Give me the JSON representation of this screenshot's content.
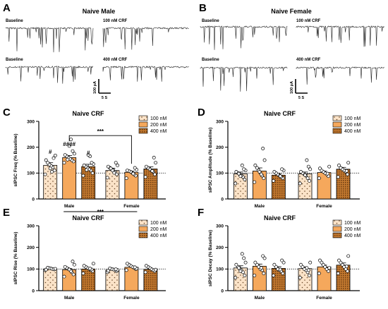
{
  "panels": {
    "A": {
      "label": "A",
      "title": "Naive Male",
      "traces": [
        "Baseline",
        "100 nM CRF",
        "Baseline",
        "400 nM CRF"
      ]
    },
    "B": {
      "label": "B",
      "title": "Naive Female",
      "traces": [
        "Baseline",
        "100 nM CRF",
        "Baseline",
        "400 nM CRF"
      ]
    }
  },
  "scalebar": {
    "amp": "100 pA",
    "time": "5 S"
  },
  "colors": {
    "c100": "#fbe3c8",
    "c200": "#f5a85c",
    "c400": "#9a5a1c",
    "dot": "#ffffff",
    "edge": "#000000"
  },
  "chart_data": [
    {
      "label": "C",
      "type": "bar",
      "title": "Naive CRF",
      "ylabel": "sIPSC Freq (% Baseline)",
      "ylim": [
        0,
        300
      ],
      "yticks": [
        0,
        100,
        200,
        300
      ],
      "categories": [
        "Male",
        "Female"
      ],
      "baseline": 100,
      "series": [
        {
          "name": "100 nM",
          "values": [
            130,
            110
          ],
          "errors": [
            10,
            9
          ],
          "patternKey": "p100",
          "points": [
            [
              95,
              110,
              122,
              128,
              133,
              140,
              150,
              168,
              158,
              105,
              118
            ],
            [
              82,
              95,
              104,
              112,
              115,
              120,
              125,
              130,
              140,
              101,
              110,
              118
            ]
          ],
          "markers": [
            {
              "text": "#",
              "groupIndex": 0,
              "y": 175
            }
          ]
        },
        {
          "name": "200 nM",
          "values": [
            160,
            103
          ],
          "errors": [
            8,
            5
          ],
          "patternKey": "p200",
          "points": [
            [
              140,
              145,
              150,
              155,
              160,
              165,
              170,
              175,
              185,
              230,
              205,
              152
            ],
            [
              80,
              90,
              95,
              100,
              105,
              108,
              110,
              113,
              120,
              98
            ]
          ],
          "markers": [
            {
              "text": "####",
              "groupIndex": 0,
              "y": 205
            }
          ]
        },
        {
          "name": "400 nM",
          "values": [
            125,
            116
          ],
          "errors": [
            9,
            8
          ],
          "patternKey": "p400",
          "points": [
            [
              90,
              100,
              110,
              115,
              120,
              125,
              130,
              135,
              140,
              165,
              170,
              112
            ],
            [
              85,
              95,
              105,
              110,
              115,
              120,
              125,
              140,
              160,
              108
            ]
          ],
          "markers": [
            {
              "text": "#",
              "groupIndex": 0,
              "y": 170
            }
          ]
        }
      ],
      "annotations": [
        {
          "text": "***",
          "type": "upper",
          "y": 245
        },
        {
          "text": "***",
          "type": "lower"
        }
      ],
      "legend": "top-right"
    },
    {
      "label": "D",
      "type": "bar",
      "title": "Naive CRF",
      "ylabel": "sIPSC Amplitude (% Baseline)",
      "ylim": [
        0,
        300
      ],
      "yticks": [
        0,
        100,
        200,
        300
      ],
      "categories": [
        "Male",
        "Female"
      ],
      "baseline": 100,
      "series": [
        {
          "name": "100 nM",
          "values": [
            97,
            97
          ],
          "errors": [
            7,
            7
          ],
          "patternKey": "p100",
          "points": [
            [
              60,
              75,
              85,
              90,
              95,
              100,
              105,
              110,
              115,
              130,
              88,
              98
            ],
            [
              60,
              70,
              80,
              90,
              95,
              100,
              105,
              115,
              125,
              150,
              92
            ]
          ]
        },
        {
          "name": "200 nM",
          "values": [
            108,
            102
          ],
          "errors": [
            12,
            6
          ],
          "patternKey": "p200",
          "points": [
            [
              65,
              80,
              90,
              100,
              110,
              120,
              130,
              150,
              195,
              95,
              105
            ],
            [
              80,
              88,
              95,
              100,
              105,
              110,
              118,
              125,
              98
            ]
          ]
        },
        {
          "name": "400 nM",
          "values": [
            92,
            115
          ],
          "errors": [
            6,
            7
          ],
          "patternKey": "p400",
          "points": [
            [
              70,
              80,
              85,
              90,
              95,
              100,
              105,
              110,
              115,
              88
            ],
            [
              85,
              95,
              105,
              110,
              115,
              120,
              130,
              140,
              108
            ]
          ]
        }
      ],
      "legend": "top-right"
    },
    {
      "label": "E",
      "type": "bar",
      "title": "Naive CRF",
      "ylabel": "sIPSC Rise (% Baseline)",
      "ylim": [
        0,
        300
      ],
      "yticks": [
        0,
        100,
        200,
        300
      ],
      "categories": [
        "Male",
        "Female"
      ],
      "baseline": 100,
      "series": [
        {
          "name": "100 nM",
          "values": [
            100,
            95
          ],
          "errors": [
            3,
            4
          ],
          "patternKey": "p100",
          "points": [
            [
              95,
              98,
              100,
              102,
              104,
              106,
              97,
              101
            ],
            [
              85,
              90,
              95,
              98,
              100,
              103,
              92,
              96,
              99
            ]
          ]
        },
        {
          "name": "200 nM",
          "values": [
            97,
            108
          ],
          "errors": [
            6,
            5
          ],
          "patternKey": "p200",
          "points": [
            [
              65,
              75,
              85,
              95,
              100,
              105,
              110,
              120,
              135,
              90,
              98
            ],
            [
              95,
              100,
              105,
              110,
              115,
              120,
              125,
              102,
              108
            ]
          ]
        },
        {
          "name": "400 nM",
          "values": [
            100,
            98
          ],
          "errors": [
            5,
            4
          ],
          "patternKey": "p400",
          "points": [
            [
              80,
              90,
              95,
              100,
              105,
              110,
              115,
              125,
              98,
              102
            ],
            [
              85,
              90,
              95,
              100,
              105,
              110,
              115,
              97
            ]
          ]
        }
      ],
      "legend": "top-right"
    },
    {
      "label": "F",
      "type": "bar",
      "title": "Naive CRF",
      "ylabel": "sIPSC Decay (% Baseline)",
      "ylim": [
        0,
        300
      ],
      "yticks": [
        0,
        100,
        200,
        300
      ],
      "categories": [
        "Male",
        "Female"
      ],
      "baseline": 100,
      "series": [
        {
          "name": "100 nM",
          "values": [
            105,
            102
          ],
          "errors": [
            10,
            8
          ],
          "patternKey": "p100",
          "points": [
            [
              60,
              70,
              85,
              95,
              100,
              110,
              120,
              130,
              150,
              170,
              90,
              105
            ],
            [
              60,
              70,
              85,
              95,
              100,
              110,
              120,
              130,
              95,
              105
            ]
          ]
        },
        {
          "name": "200 nM",
          "values": [
            113,
            110
          ],
          "errors": [
            10,
            8
          ],
          "patternKey": "p200",
          "points": [
            [
              70,
              80,
              95,
              100,
              110,
              120,
              130,
              150,
              160,
              105
            ],
            [
              80,
              90,
              100,
              110,
              120,
              130,
              140,
              105
            ]
          ]
        },
        {
          "name": "400 nM",
          "values": [
            103,
            118
          ],
          "errors": [
            8,
            10
          ],
          "patternKey": "p400",
          "points": [
            [
              70,
              80,
              90,
              95,
              100,
              110,
              120,
              130,
              140,
              98
            ],
            [
              80,
              90,
              100,
              110,
              120,
              130,
              140,
              160,
              112
            ]
          ]
        }
      ],
      "legend": "top-right"
    }
  ]
}
